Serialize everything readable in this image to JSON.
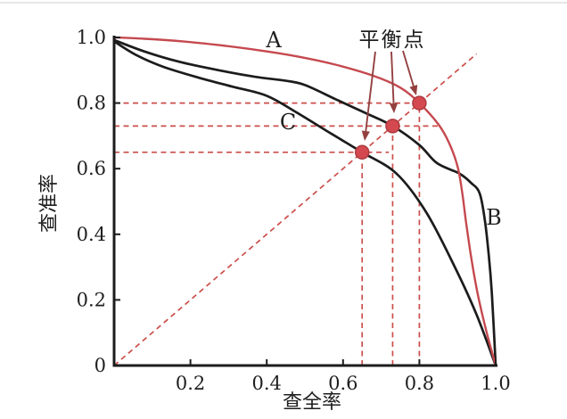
{
  "figure": {
    "annotation_label": "平衡点",
    "curve_labels": {
      "a": "A",
      "b": "B",
      "c": "C"
    },
    "axes": {
      "xlabel": "查全率",
      "ylabel": "查准率",
      "origin_label": "0",
      "x_tick_labels": [
        "0.2",
        "0.4",
        "0.6",
        "0.8",
        "1.0"
      ],
      "y_tick_labels": [
        "0.2",
        "0.4",
        "0.6",
        "0.8",
        "1.0"
      ],
      "x_tick_values": [
        0.2,
        0.4,
        0.6,
        0.8,
        1.0
      ],
      "y_tick_values": [
        0.2,
        0.4,
        0.6,
        0.8,
        1.0
      ]
    },
    "colors": {
      "curve_a_red": "#c5494f",
      "curve_black": "#1c1c1c",
      "dashed_guides": "#cb4f4b",
      "bep_dot_fill": "#d4494f",
      "bep_dot_stroke": "#ae3a41",
      "arrow": "#944040",
      "axis": "#1c1c1c",
      "text": "#1f1f1f"
    }
  },
  "chart_data": {
    "type": "line",
    "title": "",
    "xlabel": "查全率",
    "ylabel": "查准率",
    "xlim": [
      0,
      1.0
    ],
    "ylim": [
      0,
      1.0
    ],
    "grid": false,
    "legend_position": "none",
    "series": [
      {
        "name": "A",
        "color": "#c5494f",
        "points": [
          [
            0,
            1.0
          ],
          [
            0.08,
            0.996
          ],
          [
            0.18,
            0.988
          ],
          [
            0.28,
            0.976
          ],
          [
            0.38,
            0.961
          ],
          [
            0.48,
            0.942
          ],
          [
            0.58,
            0.917
          ],
          [
            0.68,
            0.883
          ],
          [
            0.75,
            0.847
          ],
          [
            0.8,
            0.8
          ],
          [
            0.85,
            0.735
          ],
          [
            0.878,
            0.678
          ],
          [
            0.9,
            0.607
          ],
          [
            0.912,
            0.53
          ],
          [
            0.922,
            0.44
          ],
          [
            0.935,
            0.335
          ],
          [
            0.95,
            0.235
          ],
          [
            0.965,
            0.155
          ],
          [
            0.98,
            0.085
          ],
          [
            1.0,
            0
          ]
        ]
      },
      {
        "name": "B",
        "color": "#1c1c1c",
        "points": [
          [
            0,
            0.992
          ],
          [
            0.08,
            0.957
          ],
          [
            0.17,
            0.926
          ],
          [
            0.27,
            0.901
          ],
          [
            0.37,
            0.88
          ],
          [
            0.45,
            0.868
          ],
          [
            0.5,
            0.855
          ],
          [
            0.58,
            0.812
          ],
          [
            0.66,
            0.769
          ],
          [
            0.73,
            0.73
          ],
          [
            0.8,
            0.672
          ],
          [
            0.846,
            0.617
          ],
          [
            0.905,
            0.585
          ],
          [
            0.935,
            0.557
          ],
          [
            0.958,
            0.525
          ],
          [
            0.972,
            0.44
          ],
          [
            0.982,
            0.335
          ],
          [
            0.99,
            0.22
          ],
          [
            1.0,
            0
          ]
        ]
      },
      {
        "name": "C",
        "color": "#1c1c1c",
        "points": [
          [
            0,
            0.988
          ],
          [
            0.06,
            0.945
          ],
          [
            0.13,
            0.91
          ],
          [
            0.22,
            0.878
          ],
          [
            0.31,
            0.85
          ],
          [
            0.4,
            0.822
          ],
          [
            0.48,
            0.77
          ],
          [
            0.57,
            0.706
          ],
          [
            0.65,
            0.65
          ],
          [
            0.74,
            0.585
          ],
          [
            0.818,
            0.467
          ],
          [
            0.893,
            0.3
          ],
          [
            0.95,
            0.155
          ],
          [
            1.0,
            0
          ]
        ]
      }
    ],
    "diagonal_reference": {
      "style": "dashed",
      "from": [
        0,
        0
      ],
      "to": [
        0.95,
        0.95
      ]
    },
    "break_even_points": [
      {
        "curve": "C",
        "x": 0.65,
        "y": 0.65
      },
      {
        "curve": "B",
        "x": 0.73,
        "y": 0.73
      },
      {
        "curve": "A",
        "x": 0.8,
        "y": 0.8
      }
    ],
    "guide_lines": {
      "horizontal": [
        {
          "y": 0.65,
          "x_start": 0,
          "x_end": 0.72
        },
        {
          "y": 0.73,
          "x_start": 0,
          "x_end": 0.85
        },
        {
          "y": 0.8,
          "x_start": 0,
          "x_end": 0.815
        }
      ],
      "vertical": [
        {
          "x": 0.65,
          "y_start": 0,
          "y_end": 0.65
        },
        {
          "x": 0.73,
          "y_start": 0,
          "y_end": 0.73
        },
        {
          "x": 0.8,
          "y_start": 0,
          "y_end": 0.8
        }
      ]
    },
    "annotation": {
      "text": "平衡点",
      "points_to": "break_even_points"
    }
  }
}
